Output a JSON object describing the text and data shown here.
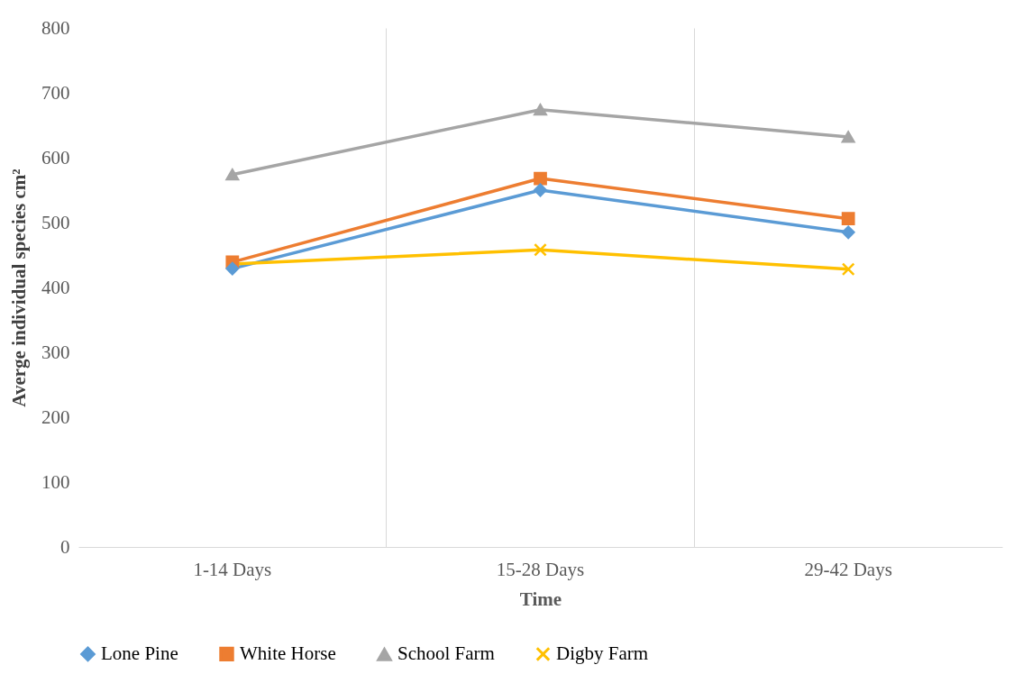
{
  "chart_data": {
    "type": "line",
    "xlabel": "Time",
    "ylabel": "Averge individual species cm²",
    "categories": [
      "1-14 Days",
      "15-28 Days",
      "29-42 Days"
    ],
    "series": [
      {
        "name": "Lone Pine",
        "color": "#5b9bd5",
        "marker": "diamond",
        "values": [
          429,
          550,
          485
        ]
      },
      {
        "name": "White Horse",
        "color": "#ed7d31",
        "marker": "square",
        "values": [
          439,
          568,
          506
        ]
      },
      {
        "name": "School Farm",
        "color": "#a5a5a5",
        "marker": "triangle",
        "values": [
          574,
          674,
          632
        ]
      },
      {
        "name": "Digby Farm",
        "color": "#ffc000",
        "marker": "cross",
        "values": [
          436,
          458,
          428
        ]
      }
    ],
    "ylim": [
      0,
      800
    ],
    "yticks": [
      0,
      100,
      200,
      300,
      400,
      500,
      600,
      700,
      800
    ],
    "grid": "x",
    "legend": "bottom"
  }
}
